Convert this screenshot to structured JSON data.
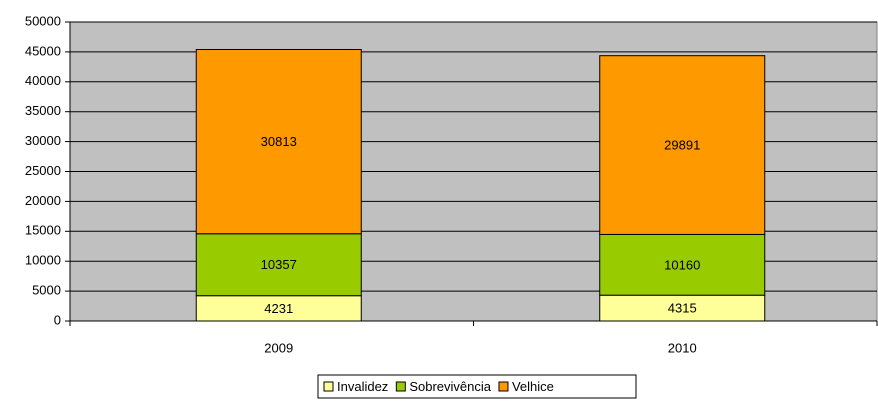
{
  "chart_data": {
    "type": "stacked_bar",
    "categories": [
      "2009",
      "2010"
    ],
    "series": [
      {
        "name": "Invalidez",
        "color": "#ffff99",
        "values": [
          4231,
          4315
        ]
      },
      {
        "name": "Sobrevivência",
        "color": "#99cc00",
        "values": [
          10357,
          10160
        ]
      },
      {
        "name": "Velhice",
        "color": "#ff9900",
        "values": [
          30813,
          29891
        ]
      }
    ],
    "ylim": [
      0,
      50000
    ],
    "yticks": [
      0,
      5000,
      10000,
      15000,
      20000,
      25000,
      30000,
      35000,
      40000,
      45000,
      50000
    ],
    "grid": true,
    "legend": "bottom"
  }
}
